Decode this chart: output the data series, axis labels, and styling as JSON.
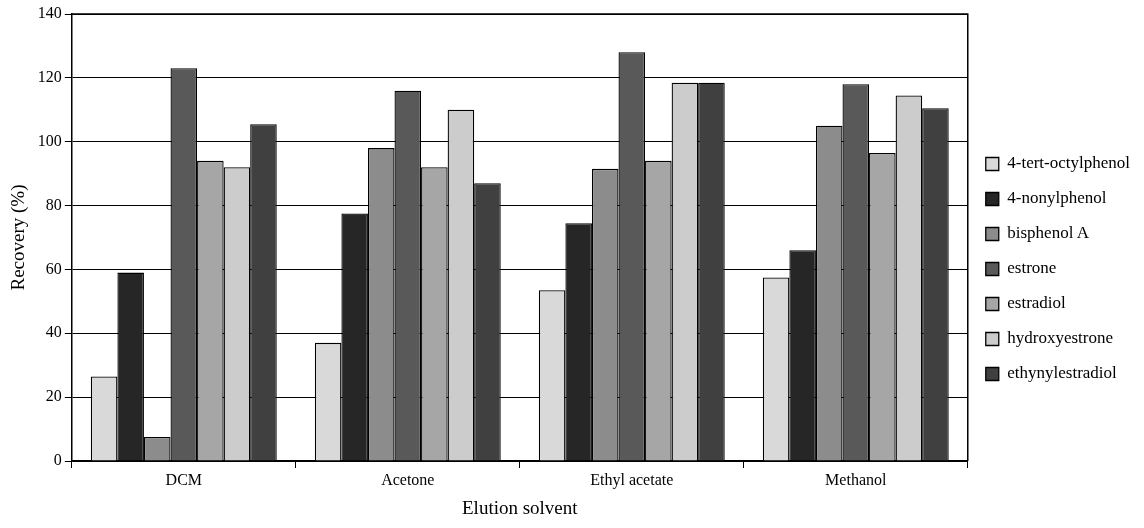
{
  "chart_data": {
    "type": "bar",
    "xlabel": "Elution solvent",
    "ylabel": "Recovery (%)",
    "categories": [
      "DCM",
      "Acetone",
      "Ethyl acetate",
      "Methanol"
    ],
    "series": [
      {
        "name": "4-tert-octylphenol",
        "color": "#d9d9d9",
        "values": [
          26.5,
          37,
          53.5,
          57.5
        ]
      },
      {
        "name": "4-nonylphenol",
        "color": "#262626",
        "values": [
          59,
          77.5,
          74.5,
          66
        ]
      },
      {
        "name": "bisphenol A",
        "color": "#8c8c8c",
        "values": [
          7.5,
          98,
          91.5,
          105
        ]
      },
      {
        "name": "estrone",
        "color": "#595959",
        "values": [
          123,
          116,
          128,
          118
        ]
      },
      {
        "name": "estradiol",
        "color": "#a6a6a6",
        "values": [
          94,
          92,
          94,
          96.5
        ]
      },
      {
        "name": "hydroxyestrone",
        "color": "#cccccc",
        "values": [
          92,
          110,
          118.5,
          114.5
        ]
      },
      {
        "name": "ethynylestradiol",
        "color": "#404040",
        "values": [
          105.5,
          87,
          118.5,
          110.5
        ]
      }
    ],
    "ylim": [
      0,
      140
    ],
    "yticks": [
      0,
      20,
      40,
      60,
      80,
      100,
      120,
      140
    ],
    "grid": "y",
    "legend": "right"
  }
}
